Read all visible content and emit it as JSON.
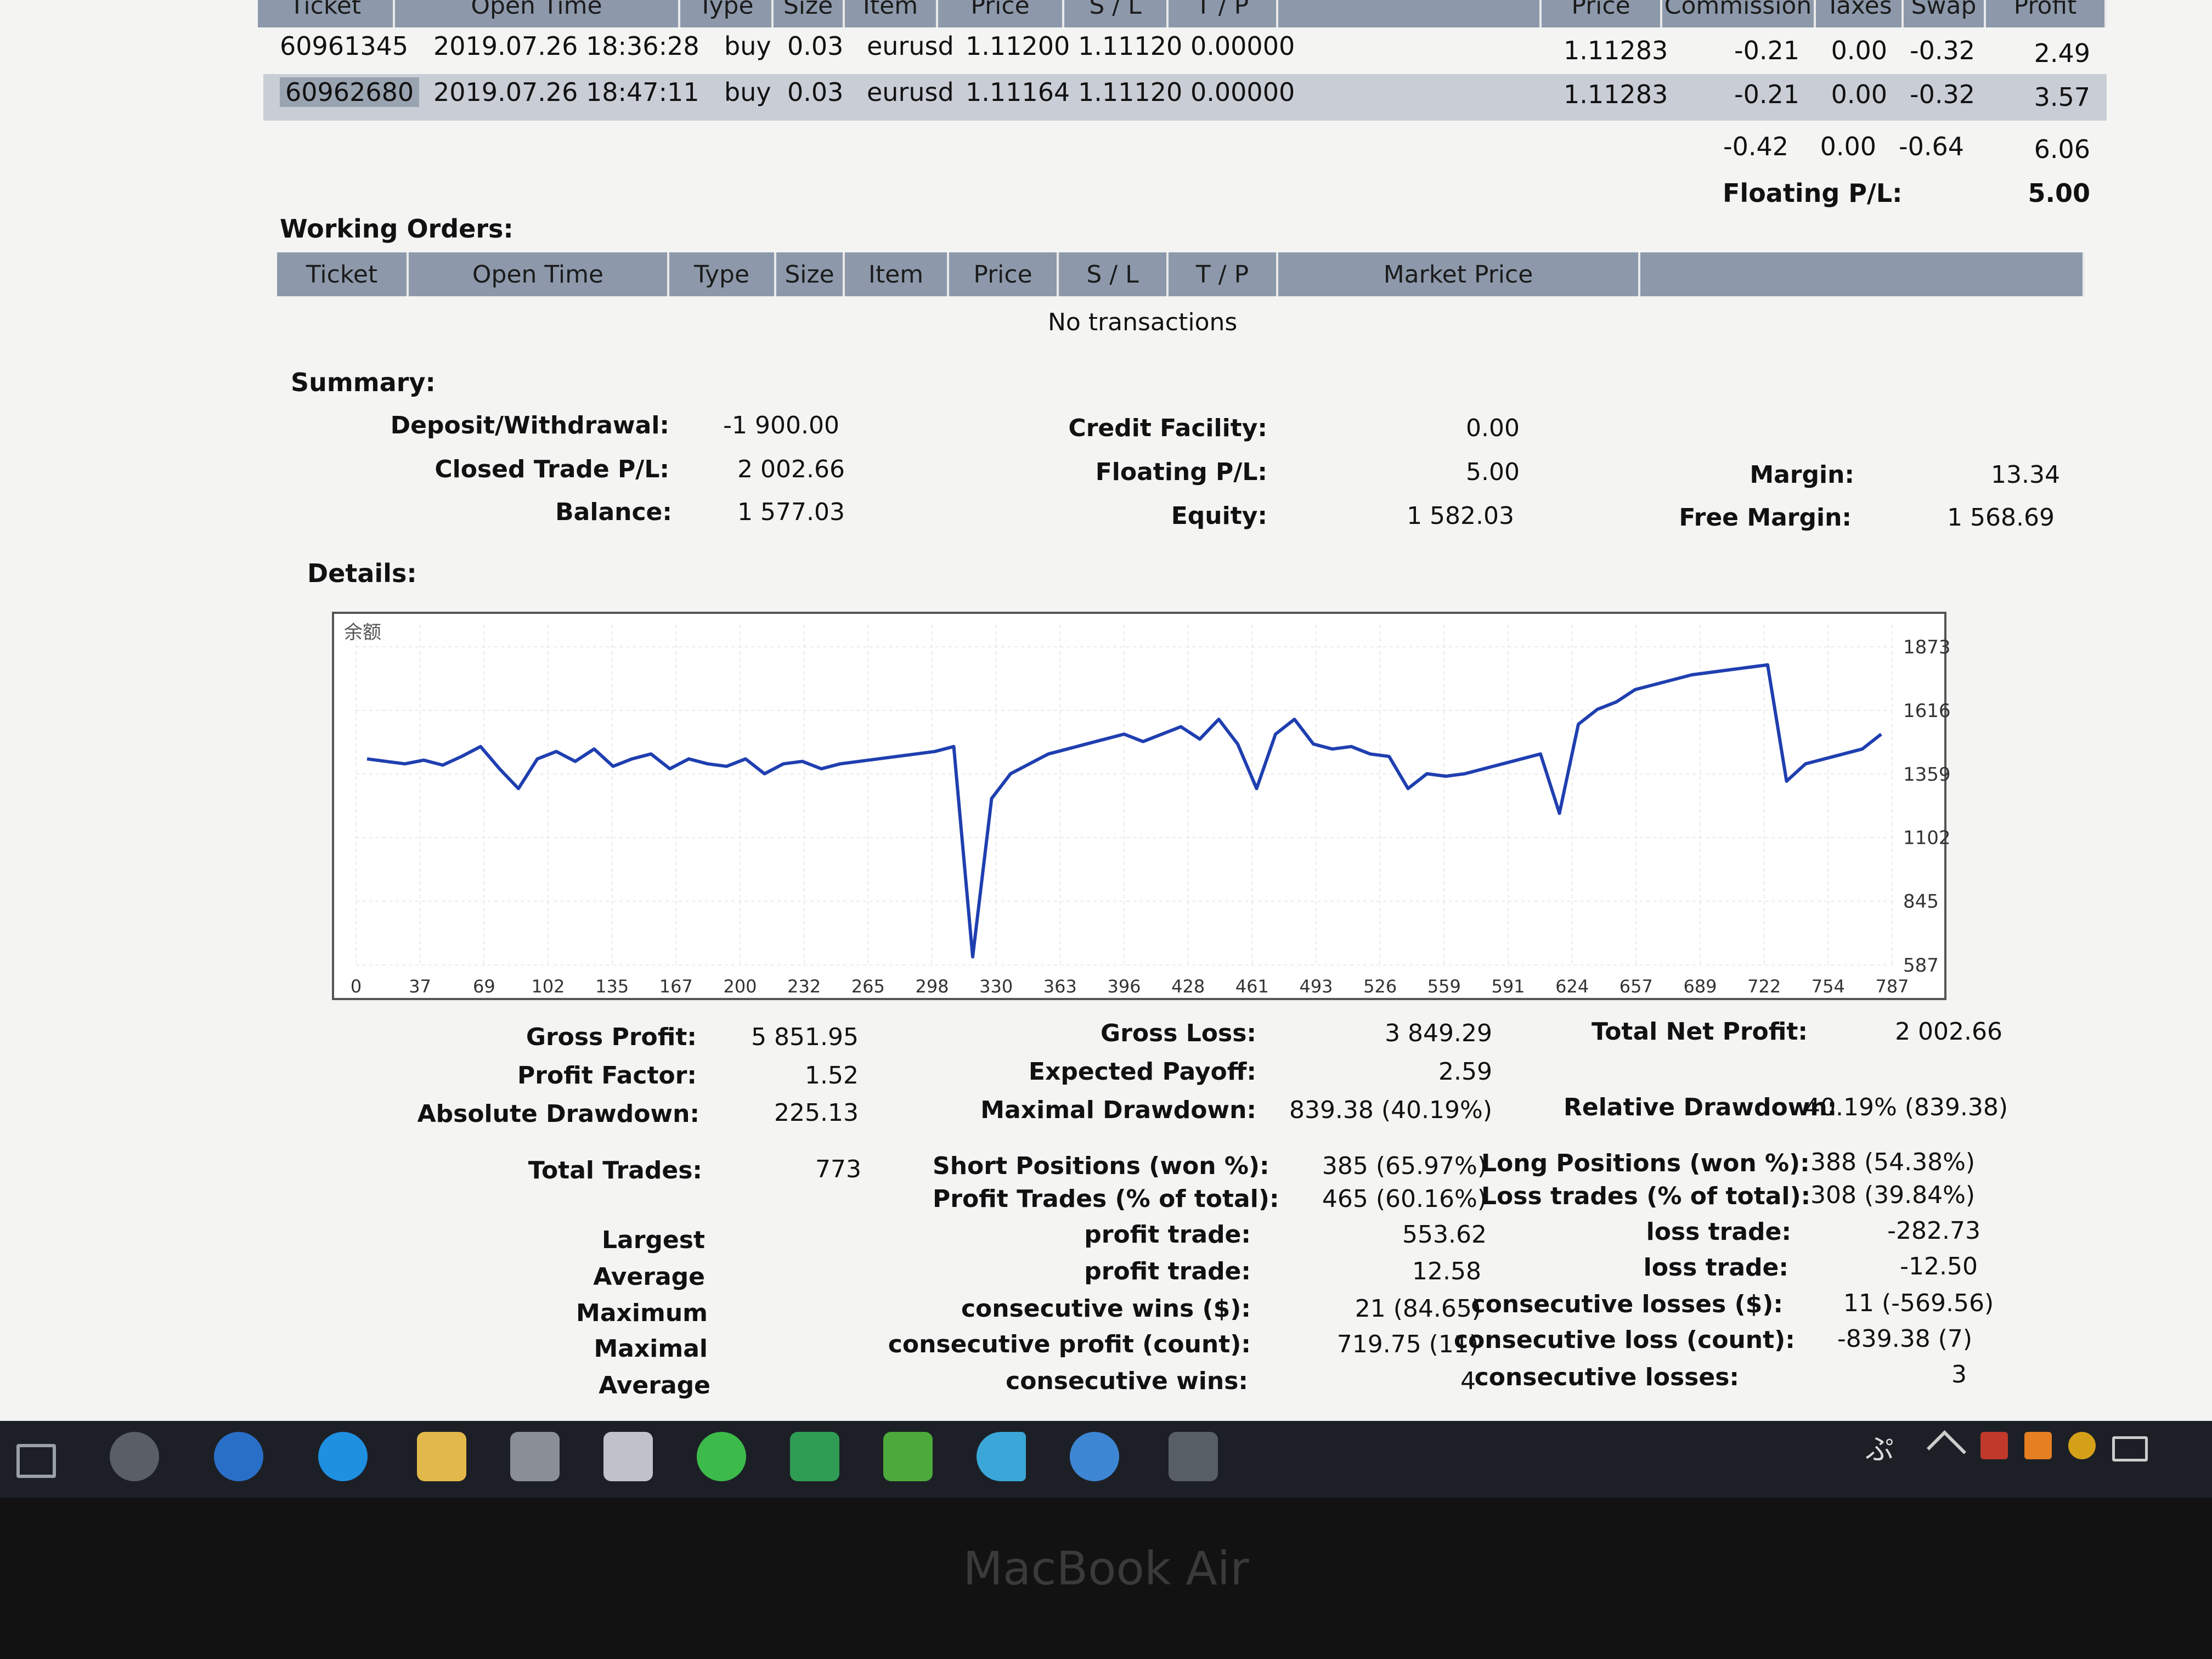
{
  "top_table": {
    "headers_partial": [
      "Ticket",
      "Open Time",
      "Type",
      "Size",
      "Item",
      "Price",
      "S / L",
      "T / P",
      "Price",
      "Commission",
      "Taxes",
      "Swap",
      "Profit"
    ],
    "rows": [
      {
        "ticket": "60961345",
        "open_time": "2019.07.26 18:36:28",
        "type": "buy",
        "size": "0.03",
        "item": "eurusd",
        "price": "1.11200",
        "sl": "1.11120",
        "tp": "0.00000",
        "market_price": "1.11283",
        "commission": "-0.21",
        "taxes": "0.00",
        "swap": "-0.32",
        "profit": "2.49"
      },
      {
        "ticket": "60962680",
        "open_time": "2019.07.26 18:47:11",
        "type": "buy",
        "size": "0.03",
        "item": "eurusd",
        "price": "1.11164",
        "sl": "1.11120",
        "tp": "0.00000",
        "market_price": "1.11283",
        "commission": "-0.21",
        "taxes": "0.00",
        "swap": "-0.32",
        "profit": "3.57"
      }
    ],
    "totals": {
      "commission": "-0.42",
      "taxes": "0.00",
      "swap": "-0.64",
      "profit": "6.06"
    },
    "floating_label": "Floating P/L:",
    "floating_value": "5.00"
  },
  "working_orders": {
    "title": "Working Orders:",
    "headers": [
      "Ticket",
      "Open Time",
      "Type",
      "Size",
      "Item",
      "Price",
      "S / L",
      "T / P",
      "Market Price"
    ],
    "empty": "No transactions"
  },
  "summary": {
    "title": "Summary:",
    "deposit_label": "Deposit/Withdrawal:",
    "deposit": "-1 900.00",
    "closed_label": "Closed Trade P/L:",
    "closed": "2 002.66",
    "balance_label": "Balance:",
    "balance": "1 577.03",
    "credit_label": "Credit Facility:",
    "credit": "0.00",
    "floating_label": "Floating P/L:",
    "floating": "5.00",
    "equity_label": "Equity:",
    "equity": "1 582.03",
    "margin_label": "Margin:",
    "margin": "13.34",
    "free_margin_label": "Free Margin:",
    "free_margin": "1 568.69"
  },
  "details": {
    "title": "Details:",
    "stats": {
      "gross_profit_label": "Gross Profit:",
      "gross_profit": "5 851.95",
      "gross_loss_label": "Gross Loss:",
      "gross_loss": "3 849.29",
      "total_net_label": "Total Net Profit:",
      "total_net": "2 002.66",
      "profit_factor_label": "Profit Factor:",
      "profit_factor": "1.52",
      "expected_label": "Expected Payoff:",
      "expected": "2.59",
      "abs_dd_label": "Absolute Drawdown:",
      "abs_dd": "225.13",
      "max_dd_label": "Maximal Drawdown:",
      "max_dd": "839.38 (40.19%)",
      "rel_dd_label": "Relative Drawdown:",
      "rel_dd": "40.19% (839.38)",
      "total_trades_label": "Total Trades:",
      "total_trades": "773",
      "short_label": "Short Positions (won %):",
      "short": "385 (65.97%)",
      "long_label": "Long Positions (won %):",
      "long": "388 (54.38%)",
      "profit_trades_label": "Profit Trades (% of total):",
      "profit_trades": "465 (60.16%)",
      "loss_trades_label": "Loss trades (% of total):",
      "loss_trades": "308 (39.84%)",
      "largest": "Largest",
      "average": "Average",
      "maximum": "Maximum",
      "maximal": "Maximal",
      "average2": "Average",
      "l_profit_label": "profit trade:",
      "l_profit": "553.62",
      "l_loss_label": "loss trade:",
      "l_loss": "-282.73",
      "a_profit_label": "profit trade:",
      "a_profit": "12.58",
      "a_loss_label": "loss trade:",
      "a_loss": "-12.50",
      "m_wins_label": "consecutive wins ($):",
      "m_wins": "21 (84.65)",
      "m_losses_label": "consecutive losses ($):",
      "m_losses": "11 (-569.56)",
      "mx_profit_label": "consecutive profit (count):",
      "mx_profit": "719.75 (11)",
      "mx_loss_label": "consecutive loss (count):",
      "mx_loss": "-839.38 (7)",
      "av_wins_label": "consecutive wins:",
      "av_wins": "4",
      "av_losses_label": "consecutive losses:",
      "av_losses": "3"
    }
  },
  "chart_data": {
    "type": "line",
    "corner_label": "余额",
    "series": [
      {
        "values": [
          1420,
          1410,
          1400,
          1415,
          1395,
          1430,
          1470,
          1380,
          1300,
          1420,
          1450,
          1410,
          1460,
          1390,
          1420,
          1440,
          1380,
          1420,
          1400,
          1390,
          1420,
          1360,
          1400,
          1410,
          1380,
          1400,
          1410,
          1420,
          1430,
          1440,
          1450,
          1470,
          620,
          1260,
          1360,
          1400,
          1440,
          1460,
          1480,
          1500,
          1520,
          1490,
          1520,
          1550,
          1500,
          1580,
          1480,
          1300,
          1520,
          1580,
          1480,
          1460,
          1470,
          1440,
          1430,
          1300,
          1360,
          1350,
          1360,
          1380,
          1400,
          1420,
          1440,
          1200,
          1560,
          1620,
          1650,
          1700,
          1720,
          1740,
          1760,
          1770,
          1780,
          1790,
          1800,
          1330,
          1400,
          1420,
          1440,
          1460,
          1520
        ],
        "color": "#1f3fb0"
      }
    ],
    "x_ticks": [
      "0",
      "37",
      "69",
      "102",
      "135",
      "167",
      "200",
      "232",
      "265",
      "298",
      "330",
      "363",
      "396",
      "428",
      "461",
      "493",
      "526",
      "559",
      "591",
      "624",
      "657",
      "689",
      "722",
      "754",
      "787"
    ],
    "y_ticks": [
      "1873",
      "1616",
      "1359",
      "1102",
      "845",
      "587"
    ],
    "ylim": [
      587,
      1873
    ],
    "grid": true
  },
  "taskbar": {
    "icons": [
      "task-view-icon",
      "app-s-icon",
      "edge-icon",
      "ie-icon",
      "file-explorer-icon",
      "store-icon",
      "mail-icon",
      "wechat-icon",
      "green-app-icon",
      "calendar-icon",
      "media-player-icon",
      "internet-explorer-icon",
      "metatrader-icon"
    ],
    "tray_label": "ぷ"
  },
  "bezel": {
    "label": "MacBook Air"
  }
}
